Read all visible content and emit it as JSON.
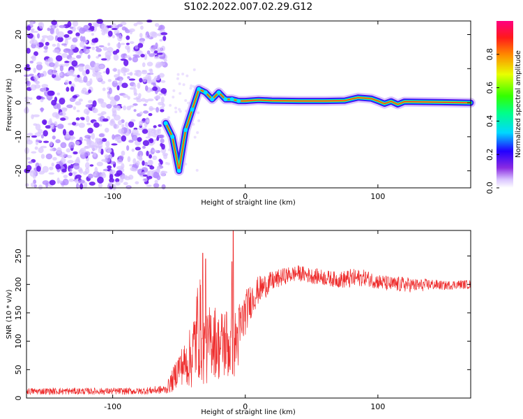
{
  "title": "S102.2022.007.02.29.G12",
  "colors": {
    "snr_line": "#ee2b2b",
    "axis": "#000000",
    "background": "#ffffff"
  },
  "chart_data": [
    {
      "type": "heatmap",
      "name": "spectrogram",
      "xlabel": "Height of straight line (km)",
      "ylabel": "Frequency (Hz)",
      "xlim": [
        -165,
        170
      ],
      "ylim": [
        -25,
        24
      ],
      "x_ticks": [
        -100,
        0,
        100
      ],
      "y_ticks": [
        -20,
        -10,
        0,
        10,
        20
      ],
      "x_tick_labels": [
        "-100",
        "0",
        "100"
      ],
      "y_tick_labels": [
        "-20",
        "-10",
        "0",
        "10",
        "20"
      ],
      "noise_region_x": [
        -165,
        -60
      ],
      "signal_center_hz": [
        [
          -60,
          -6
        ],
        [
          -55,
          -10
        ],
        [
          -50,
          -20
        ],
        [
          -45,
          -8
        ],
        [
          -40,
          -2
        ],
        [
          -35,
          4
        ],
        [
          -30,
          3
        ],
        [
          -25,
          1
        ],
        [
          -20,
          3
        ],
        [
          -15,
          1
        ],
        [
          -10,
          1
        ],
        [
          -5,
          0.5
        ],
        [
          0,
          0.5
        ],
        [
          10,
          0.8
        ],
        [
          20,
          0.6
        ],
        [
          40,
          0.5
        ],
        [
          60,
          0.5
        ],
        [
          75,
          0.6
        ],
        [
          85,
          1.5
        ],
        [
          95,
          1.2
        ],
        [
          100,
          0.5
        ],
        [
          105,
          -0.3
        ],
        [
          110,
          0.4
        ],
        [
          115,
          -0.5
        ],
        [
          120,
          0.3
        ],
        [
          140,
          0.2
        ],
        [
          170,
          0
        ]
      ],
      "colorbar": {
        "label": "Normalized spectral amplitude",
        "range": [
          0,
          1
        ],
        "ticks": [
          0.0,
          0.2,
          0.4,
          0.6,
          0.8
        ],
        "tick_labels": [
          "0.0",
          "0.2",
          "0.4",
          "0.6",
          "0.8"
        ]
      }
    },
    {
      "type": "line",
      "name": "snr",
      "xlabel": "Height of straight line (km)",
      "ylabel": "SNR (10 * v/v)",
      "xlim": [
        -165,
        170
      ],
      "ylim": [
        0,
        295
      ],
      "x_ticks": [
        -100,
        0,
        100
      ],
      "y_ticks": [
        0,
        50,
        100,
        150,
        200,
        250
      ],
      "x_tick_labels": [
        "-100",
        "0",
        "100"
      ],
      "y_tick_labels": [
        "0",
        "50",
        "100",
        "150",
        "200",
        "250"
      ],
      "envelope": {
        "x": [
          -165,
          -120,
          -80,
          -60,
          -55,
          -50,
          -45,
          -40,
          -35,
          -30,
          -25,
          -20,
          -15,
          -10,
          -5,
          0,
          5,
          10,
          20,
          30,
          40,
          50,
          60,
          70,
          80,
          90,
          100,
          110,
          120,
          130,
          140,
          150,
          160,
          170
        ],
        "mean": [
          12,
          12,
          12,
          15,
          30,
          55,
          60,
          75,
          130,
          80,
          110,
          90,
          100,
          85,
          110,
          150,
          175,
          190,
          205,
          215,
          220,
          215,
          212,
          208,
          210,
          212,
          205,
          200,
          200,
          198,
          200,
          198,
          200,
          200
        ],
        "spread": [
          6,
          6,
          6,
          8,
          20,
          30,
          40,
          60,
          100,
          60,
          70,
          60,
          70,
          60,
          60,
          40,
          30,
          25,
          18,
          15,
          14,
          14,
          14,
          14,
          18,
          14,
          14,
          14,
          14,
          12,
          10,
          8,
          8,
          8
        ]
      },
      "spikes": [
        {
          "x": -32,
          "y": 255
        },
        {
          "x": -30,
          "y": 245
        },
        {
          "x": -9,
          "y": 295
        },
        {
          "x": -10,
          "y": 240
        }
      ]
    }
  ]
}
